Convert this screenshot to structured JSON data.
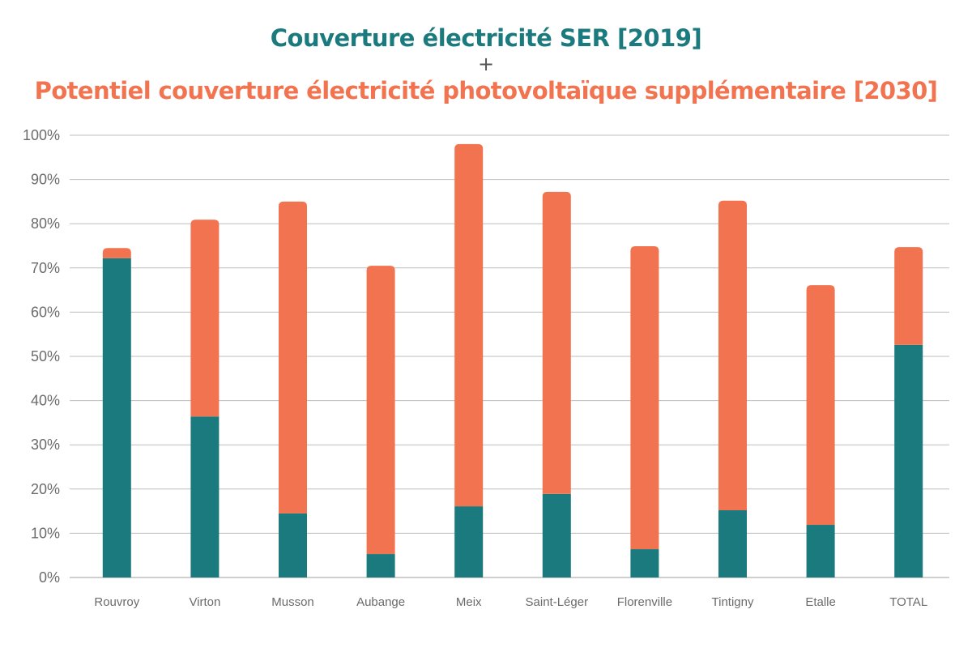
{
  "chart_data": {
    "type": "bar",
    "stacked": true,
    "title": "Couverture électricité SER [2019]",
    "title_connector": "+",
    "subtitle": "Potentiel couverture électricité photovoltaïque supplémentaire [2030]",
    "xlabel": "",
    "ylabel": "",
    "ylim": [
      0,
      100
    ],
    "yticks": [
      "0%",
      "10%",
      "20%",
      "30%",
      "40%",
      "50%",
      "60%",
      "70%",
      "80%",
      "90%",
      "100%"
    ],
    "grid": true,
    "legend": "none",
    "categories": [
      "Rouvroy",
      "Virton",
      "Musson",
      "Aubange",
      "Meix",
      "Saint-Léger",
      "Florenville",
      "Tintigny",
      "Etalle",
      "TOTAL"
    ],
    "series": [
      {
        "name": "Couverture électricité SER [2019]",
        "color": "#1b7a7e",
        "values": [
          72.2,
          36.4,
          14.5,
          5.3,
          16.1,
          18.9,
          6.4,
          15.2,
          11.9,
          52.6
        ]
      },
      {
        "name": "Potentiel couverture électricité photovoltaïque supplémentaire [2030]",
        "color": "#f2734f",
        "values": [
          2.3,
          44.5,
          70.5,
          65.2,
          81.9,
          68.3,
          68.5,
          70.0,
          54.2,
          22.1
        ]
      }
    ]
  }
}
